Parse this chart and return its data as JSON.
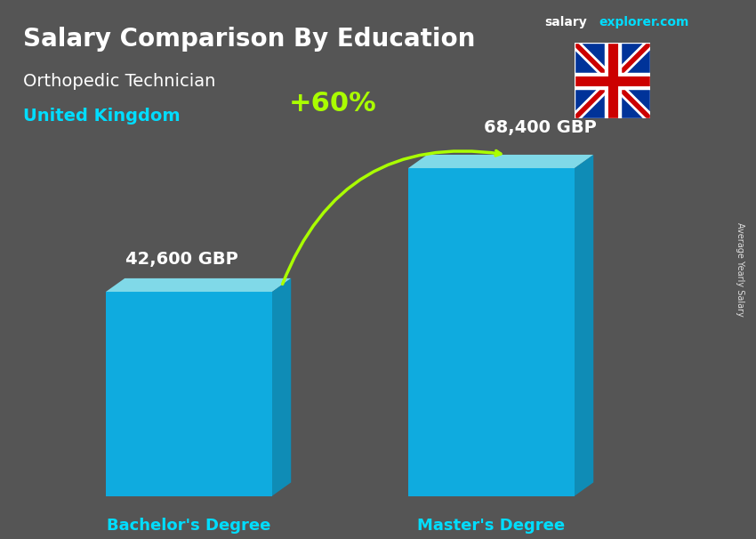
{
  "title_main": "Salary Comparison By Education",
  "title_sub": "Orthopedic Technician",
  "title_country": "United Kingdom",
  "watermark": "salaryexplorer.com",
  "side_label": "Average Yearly Salary",
  "categories": [
    "Bachelor's Degree",
    "Master's Degree"
  ],
  "values": [
    42600,
    68400
  ],
  "value_labels": [
    "42,600 GBP",
    "68,400 GBP"
  ],
  "bar_color_main": "#00BFFF",
  "bar_color_light": "#87EEFF",
  "bar_color_dark": "#0099CC",
  "pct_change_label": "+60%",
  "pct_change_color": "#AAFF00",
  "arrow_color": "#AAFF00",
  "bg_color": "#555555",
  "text_color_white": "#FFFFFF",
  "text_color_cyan": "#00DDFF",
  "bar_positions": [
    0.25,
    0.65
  ],
  "bar_width": 0.22,
  "ylim": [
    0,
    90000
  ]
}
